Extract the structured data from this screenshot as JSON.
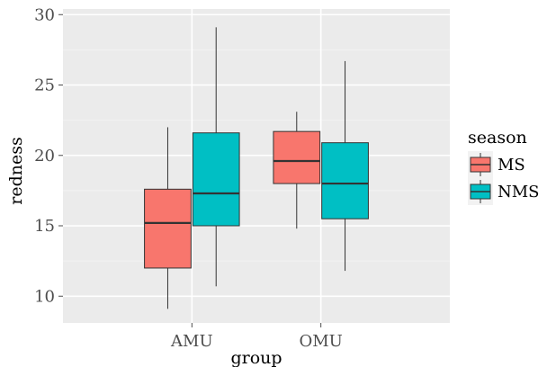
{
  "chart_data": {
    "type": "boxplot",
    "title": "",
    "xlabel": "group",
    "ylabel": "redness",
    "categories": [
      "AMU",
      "OMU"
    ],
    "ylim": [
      8.1,
      30.4
    ],
    "yticks": [
      10,
      15,
      20,
      25,
      30
    ],
    "grid": true,
    "legend": {
      "title": "season",
      "position": "right"
    },
    "series": [
      {
        "name": "MS",
        "color": "#F8766D",
        "boxes": [
          {
            "category": "AMU",
            "min": 9.1,
            "q1": 12.0,
            "median": 15.2,
            "q3": 17.6,
            "max": 22.0
          },
          {
            "category": "OMU",
            "min": 14.8,
            "q1": 18.0,
            "median": 19.6,
            "q3": 21.7,
            "max": 23.1
          }
        ]
      },
      {
        "name": "NMS",
        "color": "#00BFC4",
        "boxes": [
          {
            "category": "AMU",
            "min": 10.7,
            "q1": 15.0,
            "median": 17.3,
            "q3": 21.6,
            "max": 29.1
          },
          {
            "category": "OMU",
            "min": 11.8,
            "q1": 15.5,
            "median": 18.0,
            "q3": 20.9,
            "max": 26.7
          }
        ]
      }
    ]
  }
}
